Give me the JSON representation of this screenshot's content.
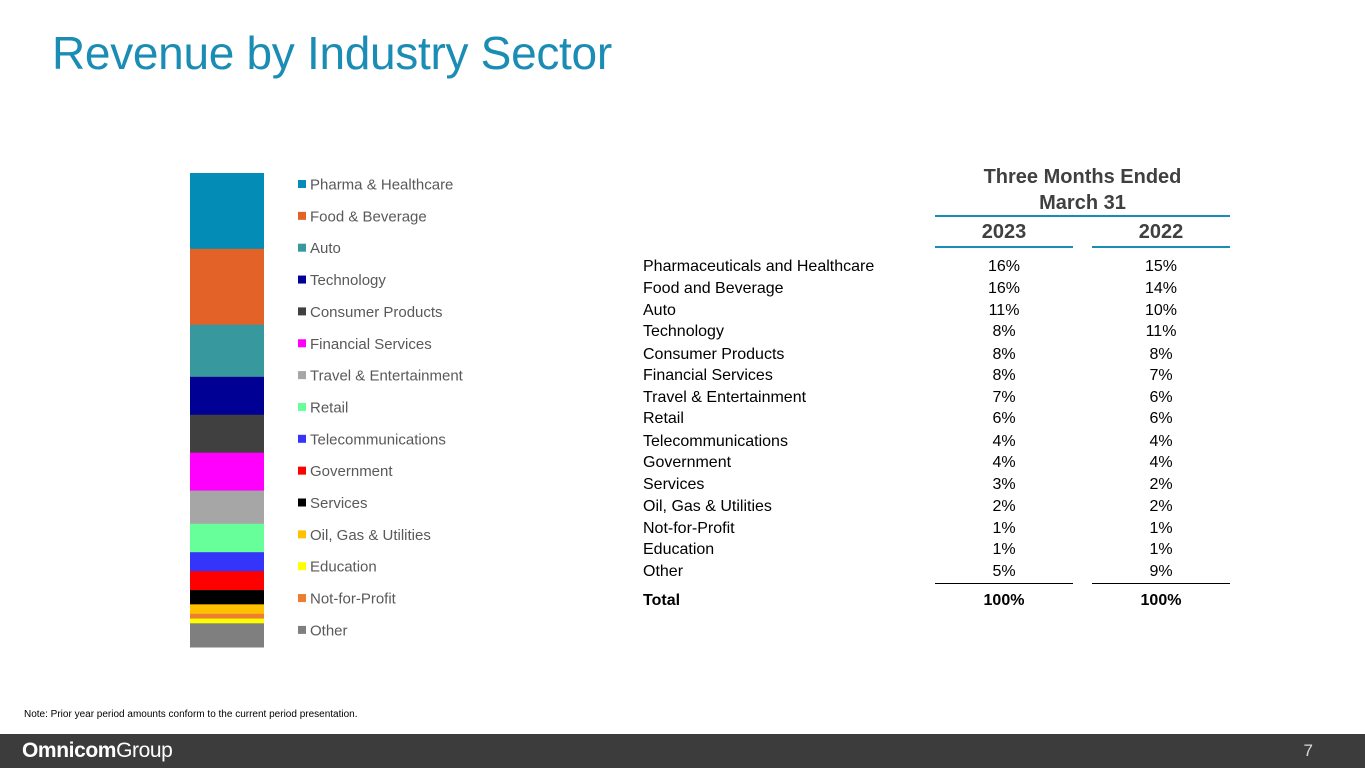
{
  "title": "Revenue by Industry Sector",
  "chart_data": {
    "type": "bar",
    "subtype": "100% stacked column (single column)",
    "title": "",
    "categories": [
      "Pharma & Healthcare",
      "Food & Beverage",
      "Auto",
      "Technology",
      "Consumer Products",
      "Financial Services",
      "Travel & Entertainment",
      "Retail",
      "Telecommunications",
      "Government",
      "Services",
      "Oil, Gas & Utilities",
      "Education",
      "Not-for-Profit",
      "Other"
    ],
    "values": [
      16,
      16,
      11,
      8,
      8,
      8,
      7,
      6,
      4,
      4,
      3,
      2,
      1,
      1,
      5
    ],
    "colors": [
      "#038cb5",
      "#e26227",
      "#37999e",
      "#000094",
      "#404040",
      "#ff00ff",
      "#a6a6a6",
      "#66ff99",
      "#3434fa",
      "#ff0000",
      "#000000",
      "#ffc000",
      "#ffff00",
      "#ed7d31",
      "#7f7f7f"
    ],
    "stack_order": [
      0,
      1,
      2,
      3,
      4,
      5,
      6,
      7,
      8,
      9,
      10,
      11,
      13,
      12,
      14
    ],
    "ylim": [
      0,
      100
    ],
    "legend_position": "right"
  },
  "table": {
    "header_line1": "Three Months Ended",
    "header_line2": "March 31",
    "years": [
      "2023",
      "2022"
    ],
    "rows": [
      {
        "label": "Pharmaceuticals and Healthcare",
        "v2023": "16%",
        "v2022": "15%"
      },
      {
        "label": "Food and Beverage",
        "v2023": "16%",
        "v2022": "14%"
      },
      {
        "label": "Auto",
        "v2023": "11%",
        "v2022": "10%"
      },
      {
        "label": "Technology",
        "v2023": "8%",
        "v2022": "11%"
      },
      {
        "label": "Consumer Products",
        "v2023": "8%",
        "v2022": "8%"
      },
      {
        "label": "Financial Services",
        "v2023": "8%",
        "v2022": "7%"
      },
      {
        "label": "Travel & Entertainment",
        "v2023": "7%",
        "v2022": "6%"
      },
      {
        "label": "Retail",
        "v2023": "6%",
        "v2022": "6%"
      },
      {
        "label": "Telecommunications",
        "v2023": "4%",
        "v2022": "4%"
      },
      {
        "label": "Government",
        "v2023": "4%",
        "v2022": "4%"
      },
      {
        "label": "Services",
        "v2023": "3%",
        "v2022": "2%"
      },
      {
        "label": "Oil, Gas & Utilities",
        "v2023": "2%",
        "v2022": "2%"
      },
      {
        "label": "Not-for-Profit",
        "v2023": "1%",
        "v2022": "1%"
      },
      {
        "label": "Education",
        "v2023": "1%",
        "v2022": "1%"
      },
      {
        "label": "Other",
        "v2023": "5%",
        "v2022": "9%"
      }
    ],
    "total": {
      "label": "Total",
      "v2023": "100%",
      "v2022": "100%"
    }
  },
  "note": "Note:  Prior year period amounts conform to the current period presentation.",
  "footer": {
    "brand_bold": "Omnicom",
    "brand_light": "Group",
    "page_number": "7"
  }
}
